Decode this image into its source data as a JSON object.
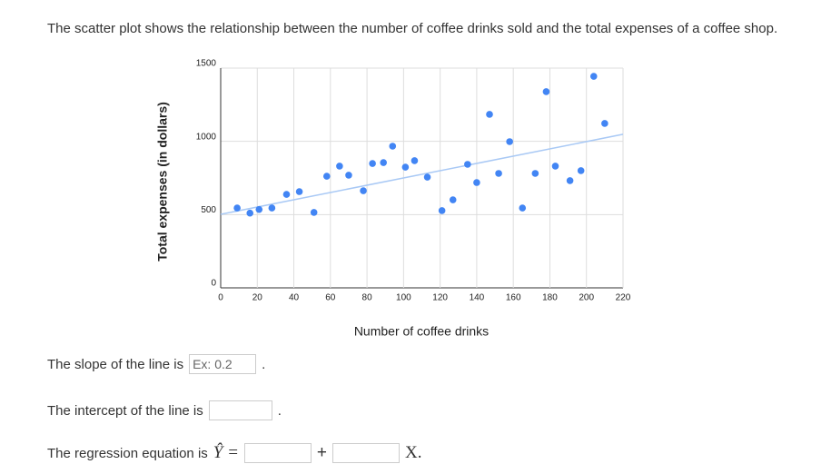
{
  "question": "The scatter plot shows the relationship between the number of coffee drinks sold and the total expenses of a coffee shop.",
  "chart_data": {
    "type": "scatter",
    "x_label": "Number of coffee drinks",
    "y_label": "Total expenses (in dollars)",
    "series": [
      {
        "color": "#4285f4",
        "x": [
          9,
          16,
          21,
          28,
          36,
          43,
          51,
          58,
          65,
          70,
          78,
          83,
          89,
          94,
          101,
          106,
          113,
          121,
          127,
          135,
          140,
          147,
          152,
          158,
          165,
          172,
          178,
          183,
          191,
          197,
          204,
          210
        ],
        "values": [
          545,
          510,
          535,
          545,
          638,
          657,
          515,
          762,
          831,
          769,
          663,
          849,
          855,
          967,
          824,
          868,
          756,
          527,
          601,
          843,
          719,
          1184,
          781,
          998,
          545,
          781,
          1339,
          831,
          732,
          800,
          1444,
          1122
        ]
      }
    ],
    "trendline": {
      "color": "#a9c9f5",
      "x": [
        0,
        220
      ],
      "values": [
        502,
        1048
      ]
    },
    "xlim": [
      0,
      220
    ],
    "ylim": [
      0,
      1500
    ],
    "xticks": [
      0,
      20,
      40,
      60,
      80,
      100,
      120,
      140,
      160,
      180,
      200,
      220
    ],
    "yticks": [
      0,
      500,
      1000,
      1500
    ],
    "grid": true
  },
  "form": {
    "slope_label": "The slope of the line is",
    "slope_placeholder": "Ex: 0.2",
    "period": ".",
    "intercept_label": "The intercept of the line is",
    "equation_label": "The regression equation is",
    "y_hat": "Ŷ =",
    "plus": "+",
    "x_var": "X."
  }
}
